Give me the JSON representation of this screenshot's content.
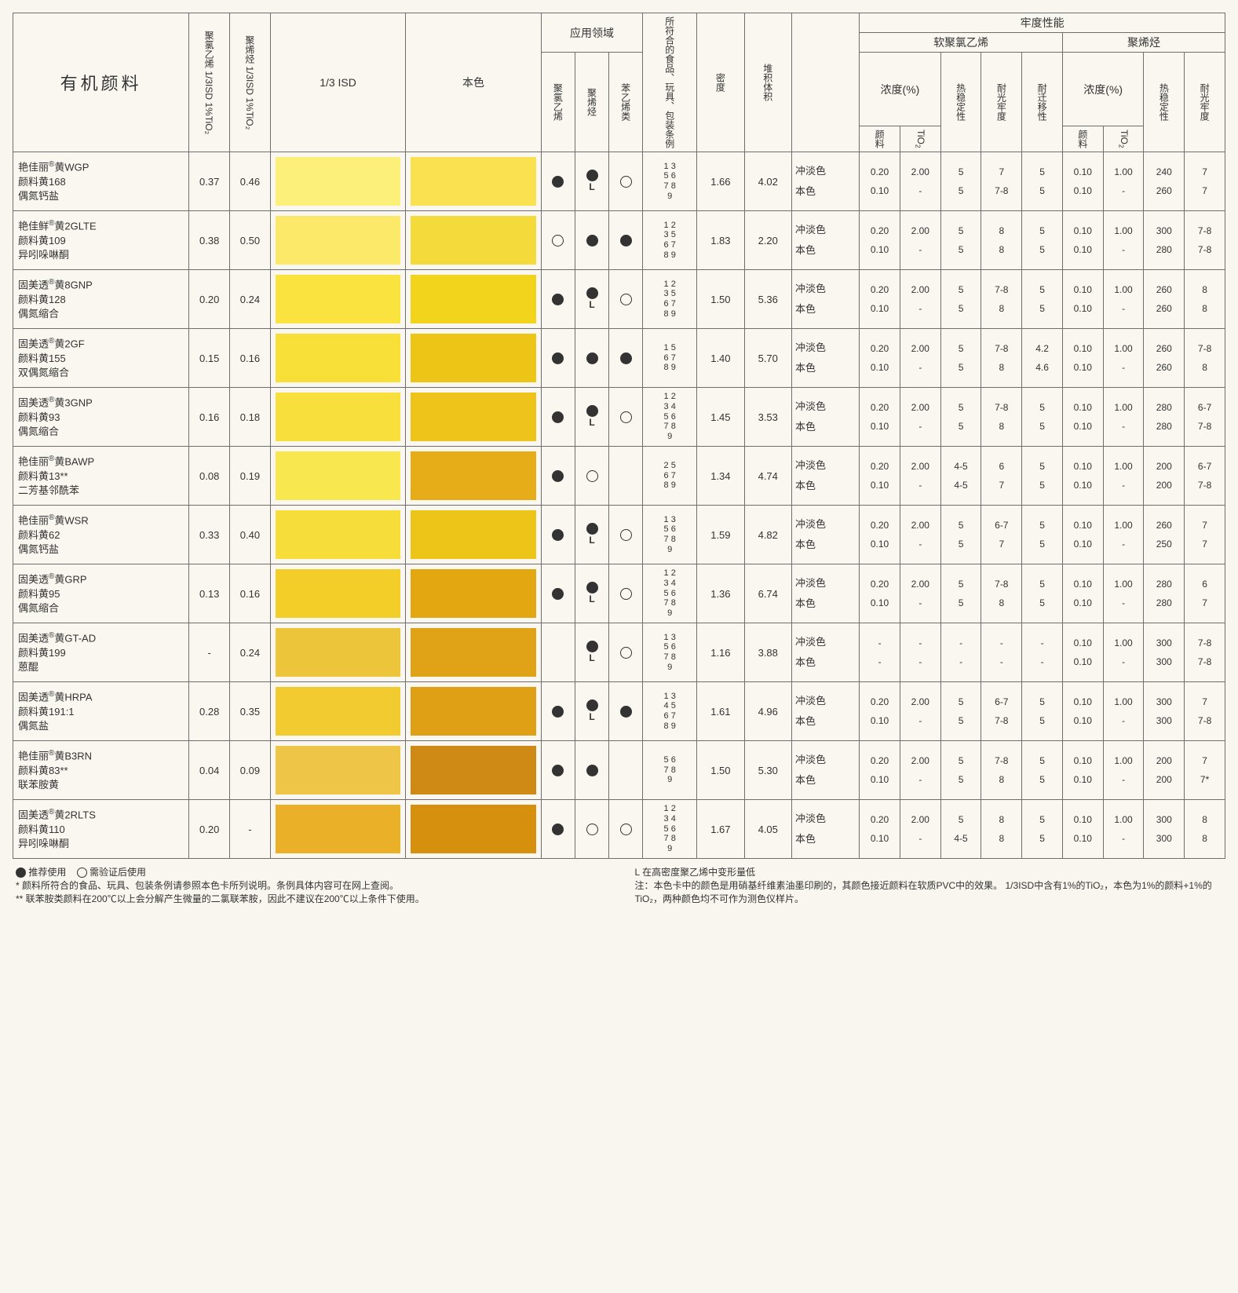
{
  "title": "有机颜料",
  "header": {
    "col_pvc": "聚氯乙烯\n1/3ISD 1%TiO₂",
    "col_po": "聚烯烃\n1/3ISD 1%TiO₂",
    "col_isd": "1/3 ISD",
    "col_main": "本色",
    "col_app": "应用领域",
    "col_app_pvc": "聚氯乙烯",
    "col_app_po": "聚烯烃",
    "col_app_st": "苯乙烯类",
    "col_food": "所符合的食品、玩具、包装条例",
    "col_density": "密度",
    "col_vol": "堆积体积",
    "col_fast": "牢度性能",
    "col_spvc": "软聚氯乙烯",
    "col_poly": "聚烯烃",
    "col_conc": "浓度(%)",
    "col_pig": "颜料",
    "col_tio2": "TiO₂",
    "col_heat": "热稳定性",
    "col_light": "耐光牢度",
    "col_mig": "耐迁移性"
  },
  "tint_labels": {
    "dilute": "冲淡色",
    "full": "本色"
  },
  "rows": [
    {
      "name": "艳佳丽<sup>®</sup>黄WGP<br>颜料黄168<br>偶氮钙盐",
      "pvc": "0.37",
      "po": "0.46",
      "swatch_isd": "#fdf07a",
      "swatch_main": "#fae14f",
      "dots": [
        "F",
        "FL",
        "O"
      ],
      "nums": "1 3<br>5 6<br>7 8<br>9",
      "density": "1.66",
      "vol": "4.02",
      "s": {
        "d": [
          "0.20",
          "2.00",
          "5",
          "7",
          "5"
        ],
        "f": [
          "0.10",
          "-",
          "5",
          "7-8",
          "5"
        ]
      },
      "p": {
        "d": [
          "0.10",
          "1.00",
          "240",
          "7"
        ],
        "f": [
          "0.10",
          "-",
          "260",
          "7"
        ]
      }
    },
    {
      "name": "艳佳鲜<sup>®</sup>黄2GLTE<br>颜料黄109<br>异吲哚啉酮",
      "pvc": "0.38",
      "po": "0.50",
      "swatch_isd": "#fce96a",
      "swatch_main": "#f5da3c",
      "dots": [
        "O",
        "F",
        "F"
      ],
      "nums": "1 2<br>3 5<br>6 7<br>8 9",
      "density": "1.83",
      "vol": "2.20",
      "s": {
        "d": [
          "0.20",
          "2.00",
          "5",
          "8",
          "5"
        ],
        "f": [
          "0.10",
          "-",
          "5",
          "8",
          "5"
        ]
      },
      "p": {
        "d": [
          "0.10",
          "1.00",
          "300",
          "7-8"
        ],
        "f": [
          "0.10",
          "-",
          "280",
          "7-8"
        ]
      }
    },
    {
      "name": "固美透<sup>®</sup>黄8GNP<br>颜料黄128<br>偶氮缩合",
      "pvc": "0.20",
      "po": "0.24",
      "swatch_isd": "#fae23f",
      "swatch_main": "#f2d41d",
      "dots": [
        "F",
        "FL",
        "O"
      ],
      "nums": "1 2<br>3 5<br>6 7<br>8 9",
      "density": "1.50",
      "vol": "5.36",
      "s": {
        "d": [
          "0.20",
          "2.00",
          "5",
          "7-8",
          "5"
        ],
        "f": [
          "0.10",
          "-",
          "5",
          "8",
          "5"
        ]
      },
      "p": {
        "d": [
          "0.10",
          "1.00",
          "260",
          "8"
        ],
        "f": [
          "0.10",
          "-",
          "260",
          "8"
        ]
      }
    },
    {
      "name": "固美透<sup>®</sup>黄2GF<br>颜料黄155<br>双偶氮缩合",
      "pvc": "0.15",
      "po": "0.16",
      "swatch_isd": "#f8e039",
      "swatch_main": "#edc516",
      "dots": [
        "F",
        "F",
        "F"
      ],
      "nums": "1 5<br>6 7<br>8 9",
      "density": "1.40",
      "vol": "5.70",
      "s": {
        "d": [
          "0.20",
          "2.00",
          "5",
          "7-8",
          "4.2"
        ],
        "f": [
          "0.10",
          "-",
          "5",
          "8",
          "4.6"
        ]
      },
      "p": {
        "d": [
          "0.10",
          "1.00",
          "260",
          "7-8"
        ],
        "f": [
          "0.10",
          "-",
          "260",
          "8"
        ]
      }
    },
    {
      "name": "固美透<sup>®</sup>黄3GNP<br>颜料黄93<br>偶氮缩合",
      "pvc": "0.16",
      "po": "0.18",
      "swatch_isd": "#f8df3b",
      "swatch_main": "#eec41a",
      "dots": [
        "F",
        "FL",
        "O"
      ],
      "nums": "1 2<br>3 4<br>5 6<br>7 8<br>9",
      "density": "1.45",
      "vol": "3.53",
      "s": {
        "d": [
          "0.20",
          "2.00",
          "5",
          "7-8",
          "5"
        ],
        "f": [
          "0.10",
          "-",
          "5",
          "8",
          "5"
        ]
      },
      "p": {
        "d": [
          "0.10",
          "1.00",
          "280",
          "6-7"
        ],
        "f": [
          "0.10",
          "-",
          "280",
          "7-8"
        ]
      }
    },
    {
      "name": "艳佳丽<sup>®</sup>黄BAWP<br>颜料黄13**<br>二芳基邻酰苯",
      "pvc": "0.08",
      "po": "0.19",
      "swatch_isd": "#f8e74f",
      "swatch_main": "#e7ad18",
      "dots": [
        "F",
        "O",
        ""
      ],
      "nums": "2 5<br>6 7<br>8 9",
      "density": "1.34",
      "vol": "4.74",
      "s": {
        "d": [
          "0.20",
          "2.00",
          "4-5",
          "6",
          "5"
        ],
        "f": [
          "0.10",
          "-",
          "4-5",
          "7",
          "5"
        ]
      },
      "p": {
        "d": [
          "0.10",
          "1.00",
          "200",
          "6-7"
        ],
        "f": [
          "0.10",
          "-",
          "200",
          "7-8"
        ]
      }
    },
    {
      "name": "艳佳丽<sup>®</sup>黄WSR<br>颜料黄62<br>偶氮钙盐",
      "pvc": "0.33",
      "po": "0.40",
      "swatch_isd": "#f6dd3a",
      "swatch_main": "#edc518",
      "dots": [
        "F",
        "FL",
        "O"
      ],
      "nums": "1 3<br>5 6<br>7 8<br>9",
      "density": "1.59",
      "vol": "4.82",
      "s": {
        "d": [
          "0.20",
          "2.00",
          "5",
          "6-7",
          "5"
        ],
        "f": [
          "0.10",
          "-",
          "5",
          "7",
          "5"
        ]
      },
      "p": {
        "d": [
          "0.10",
          "1.00",
          "260",
          "7"
        ],
        "f": [
          "0.10",
          "-",
          "250",
          "7"
        ]
      }
    },
    {
      "name": "固美透<sup>®</sup>黄GRP<br>颜料黄95<br>偶氮缩合",
      "pvc": "0.13",
      "po": "0.16",
      "swatch_isd": "#f3cd28",
      "swatch_main": "#e3a711",
      "dots": [
        "F",
        "FL",
        "O"
      ],
      "nums": "1 2<br>3 4<br>5 6<br>7 8<br>9",
      "density": "1.36",
      "vol": "6.74",
      "s": {
        "d": [
          "0.20",
          "2.00",
          "5",
          "7-8",
          "5"
        ],
        "f": [
          "0.10",
          "-",
          "5",
          "8",
          "5"
        ]
      },
      "p": {
        "d": [
          "0.10",
          "1.00",
          "280",
          "6"
        ],
        "f": [
          "0.10",
          "-",
          "280",
          "7"
        ]
      }
    },
    {
      "name": "固美透<sup>®</sup>黄GT-AD<br>颜料黄199<br>蒽醌",
      "pvc": "-",
      "po": "0.24",
      "swatch_isd": "#edc53a",
      "swatch_main": "#e0a318",
      "dots": [
        "",
        "FL",
        "O"
      ],
      "nums": "1 3<br>5 6<br>7 8<br>9",
      "density": "1.16",
      "vol": "3.88",
      "s": {
        "d": [
          "-",
          "-",
          "-",
          "-",
          "-"
        ],
        "f": [
          "-",
          "-",
          "-",
          "-",
          "-"
        ]
      },
      "p": {
        "d": [
          "0.10",
          "1.00",
          "300",
          "7-8"
        ],
        "f": [
          "0.10",
          "-",
          "300",
          "7-8"
        ]
      }
    },
    {
      "name": "固美透<sup>®</sup>黄HRPA<br>颜料黄191:1<br>偶氮盐",
      "pvc": "0.28",
      "po": "0.35",
      "swatch_isd": "#f1cb30",
      "swatch_main": "#dfa016",
      "dots": [
        "F",
        "FL",
        "F"
      ],
      "nums": "1 3<br>4 5<br>6 7<br>8 9",
      "density": "1.61",
      "vol": "4.96",
      "s": {
        "d": [
          "0.20",
          "2.00",
          "5",
          "6-7",
          "5"
        ],
        "f": [
          "0.10",
          "-",
          "5",
          "7-8",
          "5"
        ]
      },
      "p": {
        "d": [
          "0.10",
          "1.00",
          "300",
          "7"
        ],
        "f": [
          "0.10",
          "-",
          "300",
          "7-8"
        ]
      }
    },
    {
      "name": "艳佳丽<sup>®</sup>黄B3RN<br>颜料黄83**<br>联苯胺黄",
      "pvc": "0.04",
      "po": "0.09",
      "swatch_isd": "#efc548",
      "swatch_main": "#cf8a16",
      "dots": [
        "F",
        "F",
        ""
      ],
      "nums": "5 6<br>7 8<br>9",
      "density": "1.50",
      "vol": "5.30",
      "s": {
        "d": [
          "0.20",
          "2.00",
          "5",
          "7-8",
          "5"
        ],
        "f": [
          "0.10",
          "-",
          "5",
          "8",
          "5"
        ]
      },
      "p": {
        "d": [
          "0.10",
          "1.00",
          "200",
          "7"
        ],
        "f": [
          "0.10",
          "-",
          "200",
          "7*"
        ]
      }
    },
    {
      "name": "固美透<sup>®</sup>黄2RLTS<br>颜料黄110<br>异吲哚啉酮",
      "pvc": "0.20",
      "po": "-",
      "swatch_isd": "#e9b028",
      "swatch_main": "#d6900e",
      "dots": [
        "F",
        "O",
        "O"
      ],
      "nums": "1 2<br>3 4<br>5 6<br>7 8<br>9",
      "density": "1.67",
      "vol": "4.05",
      "s": {
        "d": [
          "0.20",
          "2.00",
          "5",
          "8",
          "5"
        ],
        "f": [
          "0.10",
          "-",
          "4-5",
          "8",
          "5"
        ]
      },
      "p": {
        "d": [
          "0.10",
          "1.00",
          "300",
          "8"
        ],
        "f": [
          "0.10",
          "-",
          "300",
          "8"
        ]
      }
    }
  ],
  "footer": {
    "legend_filled": "推荐使用",
    "legend_open": "需验证后使用",
    "note_star": "* 颜料所符合的食品、玩具、包装条例请参照本色卡所列说明。条例具体内容可在网上查阅。",
    "note_dstar": "** 联苯胺类颜料在200℃以上会分解产生微量的二氯联苯胺，因此不建议在200℃以上条件下使用。",
    "note_L": "L 在高密度聚乙烯中变形量低",
    "note_remark": "注：本色卡中的颜色是用硝基纤维素油墨印刷的，其颜色接近颜料在软质PVC中的效果。 1/3ISD中含有1%的TiO₂，本色为1%的颜料+1%的TiO₂，两种颜色均不可作为测色仪样片。"
  }
}
